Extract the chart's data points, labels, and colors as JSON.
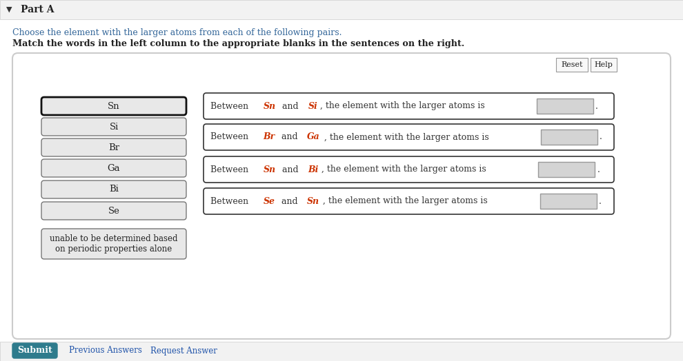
{
  "title": "Part A",
  "instruction1": "Choose the element with the larger atoms from each of the following pairs.",
  "instruction2": "Match the words in the left column to the appropriate blanks in the sentences on the right.",
  "left_items": [
    "Sn",
    "Si",
    "Br",
    "Ga",
    "Bi",
    "Se",
    "unable to be determined based\non periodic properties alone"
  ],
  "right_sentences": [
    [
      "Between ",
      "Sn",
      " and ",
      "Si",
      ", the element with the larger atoms is"
    ],
    [
      "Between ",
      "Br",
      " and ",
      "Ga",
      ", the element with the larger atoms is"
    ],
    [
      "Between ",
      "Sn",
      " and ",
      "Bi",
      ", the element with the larger atoms is"
    ],
    [
      "Between ",
      "Se",
      " and ",
      "Sn",
      ", the element with the larger atoms is"
    ]
  ],
  "bg_color": "#ffffff",
  "panel_border": "#cccccc",
  "box_bg": "#e8e8e8",
  "sentence_box_bg": "#ffffff",
  "sentence_box_border": "#444444",
  "title_color": "#222222",
  "inst1_color": "#336699",
  "inst2_color": "#222222",
  "normal_text_color": "#333333",
  "element_color": "#cc3300",
  "submit_bg": "#2e7b8c",
  "submit_text": "#ffffff",
  "reset_text": "Reset",
  "help_text": "Help",
  "submit_label": "Submit",
  "prev_answers": "Previous Answers",
  "request_answer": "Request Answer",
  "font_family": "DejaVu Serif"
}
